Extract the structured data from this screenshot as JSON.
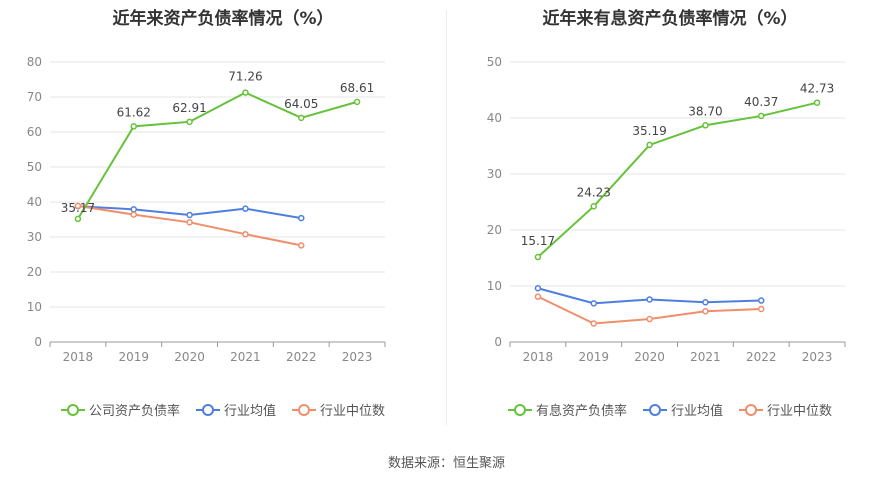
{
  "source": "数据来源：恒生聚源",
  "colors": {
    "main": "#66c23a",
    "avg": "#4e7ee0",
    "median": "#f08e6b"
  },
  "chart_data": [
    {
      "type": "line",
      "title": "近年来资产负债率情况（%）",
      "ylim": [
        0,
        80
      ],
      "yticks": [
        0,
        10,
        20,
        30,
        40,
        50,
        60,
        70,
        80
      ],
      "grid": true,
      "legend_position": "bottom",
      "categories": [
        "2018",
        "2019",
        "2020",
        "2021",
        "2022",
        "2023"
      ],
      "series": [
        {
          "name": "公司资产负债率",
          "key": "main",
          "labels": true,
          "values": [
            35.17,
            61.62,
            62.91,
            71.26,
            64.05,
            68.61
          ],
          "value_labels": [
            "35.17",
            "61.62",
            "62.91",
            "71.26",
            "64.05",
            "68.61"
          ]
        },
        {
          "name": "行业均值",
          "key": "avg",
          "labels": false,
          "values": [
            38.8,
            37.9,
            36.3,
            38.1,
            35.4,
            null
          ]
        },
        {
          "name": "行业中位数",
          "key": "median",
          "labels": false,
          "values": [
            38.9,
            36.4,
            34.2,
            30.8,
            27.6,
            null
          ]
        }
      ]
    },
    {
      "type": "line",
      "title": "近年来有息资产负债率情况（%）",
      "ylim": [
        0,
        50
      ],
      "yticks": [
        0,
        10,
        20,
        30,
        40,
        50
      ],
      "grid": true,
      "legend_position": "bottom",
      "categories": [
        "2018",
        "2019",
        "2020",
        "2021",
        "2022",
        "2023"
      ],
      "series": [
        {
          "name": "有息资产负债率",
          "key": "main",
          "labels": true,
          "values": [
            15.17,
            24.23,
            35.19,
            38.7,
            40.37,
            42.73
          ],
          "value_labels": [
            "15.17",
            "24.23",
            "35.19",
            "38.70",
            "40.37",
            "42.73"
          ]
        },
        {
          "name": "行业均值",
          "key": "avg",
          "labels": false,
          "values": [
            9.6,
            6.9,
            7.6,
            7.1,
            7.4,
            null
          ]
        },
        {
          "name": "行业中位数",
          "key": "median",
          "labels": false,
          "values": [
            8.1,
            3.3,
            4.1,
            5.5,
            5.9,
            null
          ]
        }
      ]
    }
  ]
}
